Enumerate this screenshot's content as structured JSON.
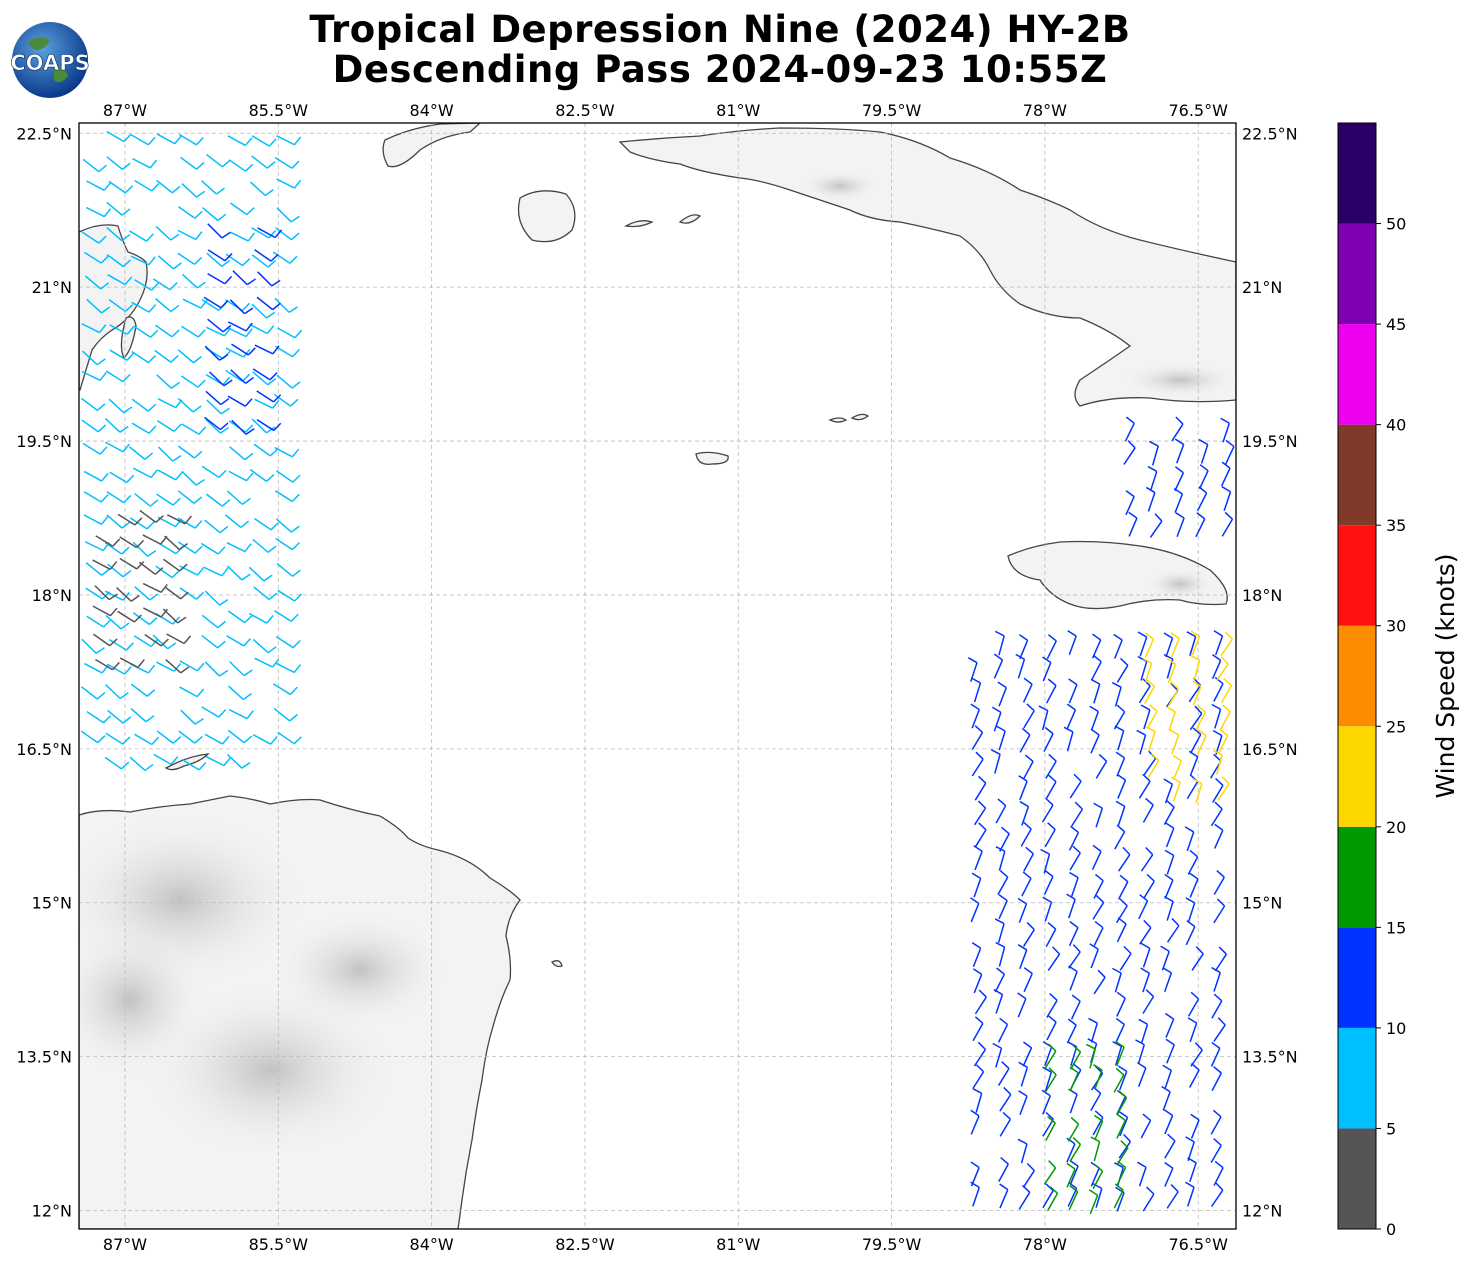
{
  "title": {
    "line1": "Tropical Depression Nine (2024) HY-2B",
    "line2": "Descending Pass 2024-09-23 10:55Z"
  },
  "logo": {
    "text": "COAPS"
  },
  "map": {
    "lon_ticks": [
      "87°W",
      "85.5°W",
      "84°W",
      "82.5°W",
      "81°W",
      "79.5°W",
      "78°W",
      "76.5°W"
    ],
    "lat_ticks": [
      "22.5°N",
      "21°N",
      "19.5°N",
      "18°N",
      "16.5°N",
      "15°N",
      "13.5°N",
      "12°N"
    ],
    "lon_values": [
      -87,
      -85.5,
      -84,
      -82.5,
      -81,
      -79.5,
      -78,
      -76.5
    ],
    "lat_values": [
      22.5,
      21,
      19.5,
      18,
      16.5,
      15,
      13.5,
      12
    ],
    "extent": {
      "lon_min": -87.45,
      "lon_max": -76.13,
      "lat_min": 11.82,
      "lat_max": 22.6
    },
    "gridlines": true,
    "colors": {
      "coast": "#444444",
      "land": "#f2f2f2",
      "grid": "#bbbbbb"
    }
  },
  "colorbar": {
    "label": "Wind Speed (knots)",
    "tick_labels": [
      "0",
      "5",
      "10",
      "15",
      "20",
      "25",
      "30",
      "35",
      "40",
      "45",
      "50"
    ],
    "bins": [
      {
        "min": 0,
        "max": 5,
        "color": "#555555"
      },
      {
        "min": 5,
        "max": 10,
        "color": "#00bfff"
      },
      {
        "min": 10,
        "max": 15,
        "color": "#0033ff"
      },
      {
        "min": 15,
        "max": 20,
        "color": "#009900"
      },
      {
        "min": 20,
        "max": 25,
        "color": "#ffd700"
      },
      {
        "min": 25,
        "max": 30,
        "color": "#ff8c00"
      },
      {
        "min": 30,
        "max": 35,
        "color": "#ff1111"
      },
      {
        "min": 35,
        "max": 40,
        "color": "#7f3a2a"
      },
      {
        "min": 40,
        "max": 45,
        "color": "#ee00ee"
      },
      {
        "min": 45,
        "max": 50,
        "color": "#7f00b3"
      },
      {
        "min": 50,
        "max": 55,
        "color": "#2a0066"
      }
    ]
  },
  "wind_swaths": [
    {
      "name": "west-swath-cyan",
      "speed_kt": 8,
      "lon_start": -87.4,
      "lon_end": -85.3,
      "lat_start": 22.5,
      "lat_end": 16.2
    },
    {
      "name": "west-swath-blue",
      "speed_kt": 12,
      "lon_start": -86.2,
      "lon_end": -85.6,
      "lat_start": 21.6,
      "lat_end": 19.5
    },
    {
      "name": "west-swath-gray",
      "speed_kt": 3,
      "lon_start": -87.3,
      "lon_end": -86.4,
      "lat_start": 18.8,
      "lat_end": 17.3
    },
    {
      "name": "east-swath-north",
      "speed_kt": 12,
      "lon_start": -77.2,
      "lon_end": -76.2,
      "lat_start": 19.5,
      "lat_end": 18.4
    },
    {
      "name": "east-swath-main",
      "speed_kt": 12,
      "lon_start": -78.7,
      "lon_end": -76.2,
      "lat_start": 17.4,
      "lat_end": 11.9
    },
    {
      "name": "east-swath-green",
      "speed_kt": 17,
      "lon_start": -78.0,
      "lon_end": -77.2,
      "lat_start": 13.4,
      "lat_end": 11.9
    },
    {
      "name": "east-swath-yellow",
      "speed_kt": 22,
      "lon_start": -77.0,
      "lon_end": -76.2,
      "lat_start": 17.4,
      "lat_end": 15.8
    }
  ]
}
